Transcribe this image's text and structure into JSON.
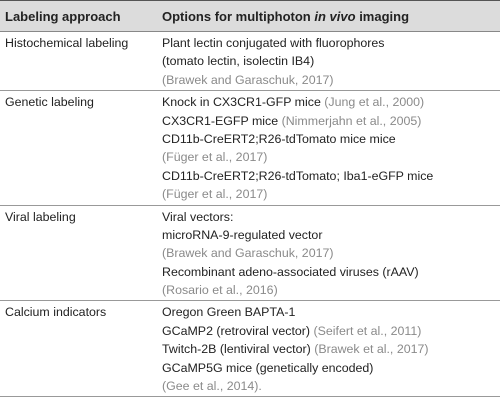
{
  "table": {
    "header": {
      "approach": "Labeling approach",
      "options": [
        "Options for multiphoton",
        "in vivo",
        "imaging"
      ]
    },
    "rows": [
      {
        "approach": "Histochemical labeling",
        "lines": [
          {
            "text": "Plant lectin conjugated with fluorophores"
          },
          {
            "text": "(tomato lectin, isolectin IB4)"
          },
          {
            "cite": "(Brawek and Garaschuk, 2017)"
          }
        ]
      },
      {
        "approach": "Genetic labeling",
        "lines": [
          {
            "text": "Knock in CX3CR1-GFP mice",
            "cite": "(Jung et al., 2000)"
          },
          {
            "text": "CX3CR1-EGFP mice",
            "cite": "(Nimmerjahn et al., 2005)"
          },
          {
            "text": "CD11b-CreERT2;R26-tdTomato mice mice"
          },
          {
            "cite": "(Füger et al., 2017)"
          },
          {
            "text": "CD11b-CreERT2;R26-tdTomato; Iba1-eGFP mice"
          },
          {
            "cite": "(Füger et al., 2017)"
          }
        ]
      },
      {
        "approach": "Viral labeling",
        "lines": [
          {
            "text": "Viral vectors:"
          },
          {
            "text": "microRNA-9-regulated vector"
          },
          {
            "cite": "(Brawek and Garaschuk, 2017)"
          },
          {
            "text": "Recombinant adeno-associated viruses (rAAV)"
          },
          {
            "cite": "(Rosario et al., 2016)"
          }
        ]
      },
      {
        "approach": "Calcium indicators",
        "lines": [
          {
            "text": "Oregon Green BAPTA-1"
          },
          {
            "text": "GCaMP2 (retroviral vector)",
            "cite": "(Seifert et al., 2011)"
          },
          {
            "text": "Twitch-2B (lentiviral vector)",
            "cite": "(Brawek et al., 2017)"
          },
          {
            "text": "GCaMP5G mice (genetically encoded)"
          },
          {
            "cite": "(Gee et al., 2014)."
          }
        ]
      }
    ]
  }
}
